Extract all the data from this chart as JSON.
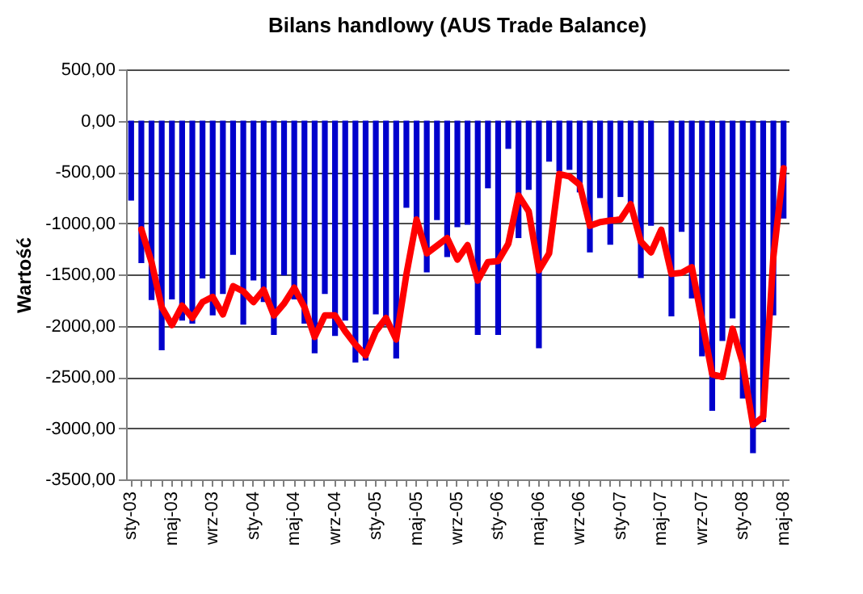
{
  "chart_data": {
    "type": "bar",
    "title": "Bilans handlowy (AUS Trade Balance)",
    "ylabel": "Wartość",
    "categories": [
      "sty-03",
      null,
      null,
      null,
      "maj-03",
      null,
      null,
      null,
      "wrz-03",
      null,
      null,
      null,
      "sty-04",
      null,
      null,
      null,
      "maj-04",
      null,
      null,
      null,
      "wrz-04",
      null,
      null,
      null,
      "sty-05",
      null,
      null,
      null,
      "maj-05",
      null,
      null,
      null,
      "wrz-05",
      null,
      null,
      null,
      "sty-06",
      null,
      null,
      null,
      "maj-06",
      null,
      null,
      null,
      "wrz-06",
      null,
      null,
      null,
      "sty-07",
      null,
      null,
      null,
      "maj-07",
      null,
      null,
      null,
      "wrz-07",
      null,
      null,
      null,
      "sty-08",
      null,
      null,
      null,
      "maj-08"
    ],
    "series": [
      {
        "color": "#0000cc",
        "values": [
          -780,
          -1390,
          -1750,
          -2240,
          -1745,
          -1950,
          -1980,
          -1540,
          -1900,
          -1690,
          -1310,
          -1990,
          -1560,
          -1770,
          -2090,
          -1510,
          -1745,
          -1980,
          -2270,
          -1690,
          -2100,
          -1950,
          -2360,
          -2340,
          -1890,
          -2000,
          -2320,
          -850,
          -960,
          -1480,
          -970,
          -1330,
          -1040,
          -1015,
          -2090,
          -660,
          -2090,
          -275,
          -1145,
          -675,
          -2220,
          -400,
          -495,
          -480,
          -700,
          -1285,
          -755,
          -1210,
          -745,
          -805,
          -1535,
          -1025,
          null,
          -1910,
          -1085,
          -1735,
          -2300,
          -2830,
          -2150,
          -1930,
          -2710,
          -3245,
          -2940,
          -1900,
          -955
        ]
      },
      {
        "type": "line",
        "color": "#ff0000",
        "values": [
          null,
          -1060,
          -1380,
          -1820,
          -1995,
          -1805,
          -1925,
          -1770,
          -1720,
          -1890,
          -1615,
          -1665,
          -1770,
          -1650,
          -1900,
          -1785,
          -1630,
          -1820,
          -2110,
          -1900,
          -1900,
          -2055,
          -2185,
          -2290,
          -2055,
          -1925,
          -2135,
          -1500,
          -965,
          -1295,
          -1220,
          -1145,
          -1355,
          -1215,
          -1560,
          -1380,
          -1370,
          -1200,
          -730,
          -885,
          -1460,
          -1295,
          -520,
          -545,
          -625,
          -1025,
          -990,
          -975,
          -965,
          -815,
          -1180,
          -1285,
          -1065,
          -1495,
          -1485,
          -1430,
          -1950,
          -2475,
          -2500,
          -2030,
          -2370,
          -2970,
          -2890,
          -1330,
          -465
        ]
      }
    ],
    "ylim": [
      -3500,
      500
    ],
    "yticks": [
      {
        "value": 500,
        "label": "500,00"
      },
      {
        "value": 0,
        "label": "0,00"
      },
      {
        "value": -500,
        "label": "-500,00"
      },
      {
        "value": -1000,
        "label": "-1000,00"
      },
      {
        "value": -1500,
        "label": "-1500,00"
      },
      {
        "value": -2000,
        "label": "-2000,00"
      },
      {
        "value": -2500,
        "label": "-2500,00"
      },
      {
        "value": -3000,
        "label": "-3000,00"
      },
      {
        "value": -3500,
        "label": "-3500,00"
      }
    ],
    "grid": "y"
  }
}
